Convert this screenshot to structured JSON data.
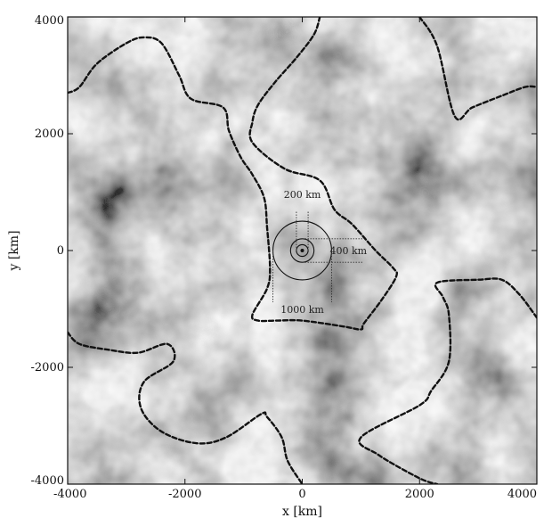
{
  "chart_data": {
    "type": "heatmap",
    "title": "",
    "xlabel": "x [km]",
    "ylabel": "y [km]",
    "xlim": [
      -4000,
      4000
    ],
    "ylim": [
      -4000,
      4000
    ],
    "x_ticks": [
      -4000,
      -2000,
      0,
      2000,
      4000
    ],
    "y_ticks": [
      -4000,
      -2000,
      0,
      2000,
      4000
    ],
    "x_tick_labels": [
      "-4000",
      "-2000",
      "0",
      "2000",
      "4000"
    ],
    "y_tick_labels": [
      "-4000",
      "-2000",
      "0",
      "2000",
      "4000"
    ],
    "colormap": "grayscale",
    "grid": false,
    "legend": "none",
    "contour_color": "#111111",
    "contours": [
      {
        "name": "",
        "points": [
          [
            -4000,
            2700
          ],
          [
            -3800,
            2800
          ],
          [
            -3500,
            3200
          ],
          [
            -3000,
            3550
          ],
          [
            -2700,
            3650
          ],
          [
            -2400,
            3550
          ],
          [
            -2100,
            3000
          ],
          [
            -1900,
            2600
          ],
          [
            -1350,
            2450
          ],
          [
            -1250,
            2050
          ],
          [
            -1050,
            1600
          ],
          [
            -850,
            1300
          ],
          [
            -650,
            900
          ],
          [
            -600,
            400
          ],
          [
            -550,
            -300
          ],
          [
            -600,
            -650
          ],
          [
            -850,
            -1100
          ],
          [
            -750,
            -1200
          ],
          [
            -450,
            -1200
          ],
          [
            0,
            -1200
          ],
          [
            700,
            -1300
          ],
          [
            1000,
            -1350
          ],
          [
            1050,
            -1250
          ],
          [
            1350,
            -850
          ],
          [
            1600,
            -450
          ],
          [
            1550,
            -300
          ],
          [
            1250,
            0
          ],
          [
            850,
            450
          ],
          [
            550,
            700
          ],
          [
            300,
            1200
          ],
          [
            -300,
            1400
          ],
          [
            -850,
            1850
          ],
          [
            -850,
            2200
          ],
          [
            -750,
            2500
          ],
          [
            -450,
            2900
          ],
          [
            -100,
            3300
          ],
          [
            200,
            3700
          ],
          [
            300,
            4000
          ]
        ]
      },
      {
        "name": "",
        "points": [
          [
            2000,
            4000
          ],
          [
            2300,
            3500
          ],
          [
            2600,
            2300
          ],
          [
            2900,
            2450
          ],
          [
            3400,
            2650
          ],
          [
            3800,
            2800
          ],
          [
            4000,
            2800
          ]
        ]
      },
      {
        "name": "",
        "points": [
          [
            -4000,
            -1400
          ],
          [
            -3800,
            -1600
          ],
          [
            -3300,
            -1700
          ],
          [
            -2800,
            -1750
          ],
          [
            -2300,
            -1600
          ],
          [
            -2200,
            -1900
          ],
          [
            -2700,
            -2250
          ],
          [
            -2750,
            -2700
          ],
          [
            -2400,
            -3100
          ],
          [
            -1800,
            -3300
          ],
          [
            -1300,
            -3200
          ],
          [
            -700,
            -2800
          ],
          [
            -600,
            -2850
          ],
          [
            -350,
            -3200
          ],
          [
            -250,
            -3600
          ],
          [
            0,
            -4000
          ]
        ]
      },
      {
        "name": "",
        "points": [
          [
            4000,
            -1150
          ],
          [
            3700,
            -750
          ],
          [
            3400,
            -500
          ],
          [
            3000,
            -500
          ],
          [
            2300,
            -550
          ],
          [
            2400,
            -800
          ],
          [
            2500,
            -1100
          ],
          [
            2500,
            -1900
          ],
          [
            2200,
            -2400
          ],
          [
            2000,
            -2650
          ],
          [
            1000,
            -3200
          ],
          [
            1300,
            -3500
          ],
          [
            2000,
            -3900
          ],
          [
            2300,
            -4000
          ]
        ]
      }
    ],
    "annotations": [
      {
        "text": "200 km",
        "radius": 100
      },
      {
        "text": "400 km",
        "radius": 200
      },
      {
        "text": "1000 km",
        "radius": 500
      }
    ]
  }
}
